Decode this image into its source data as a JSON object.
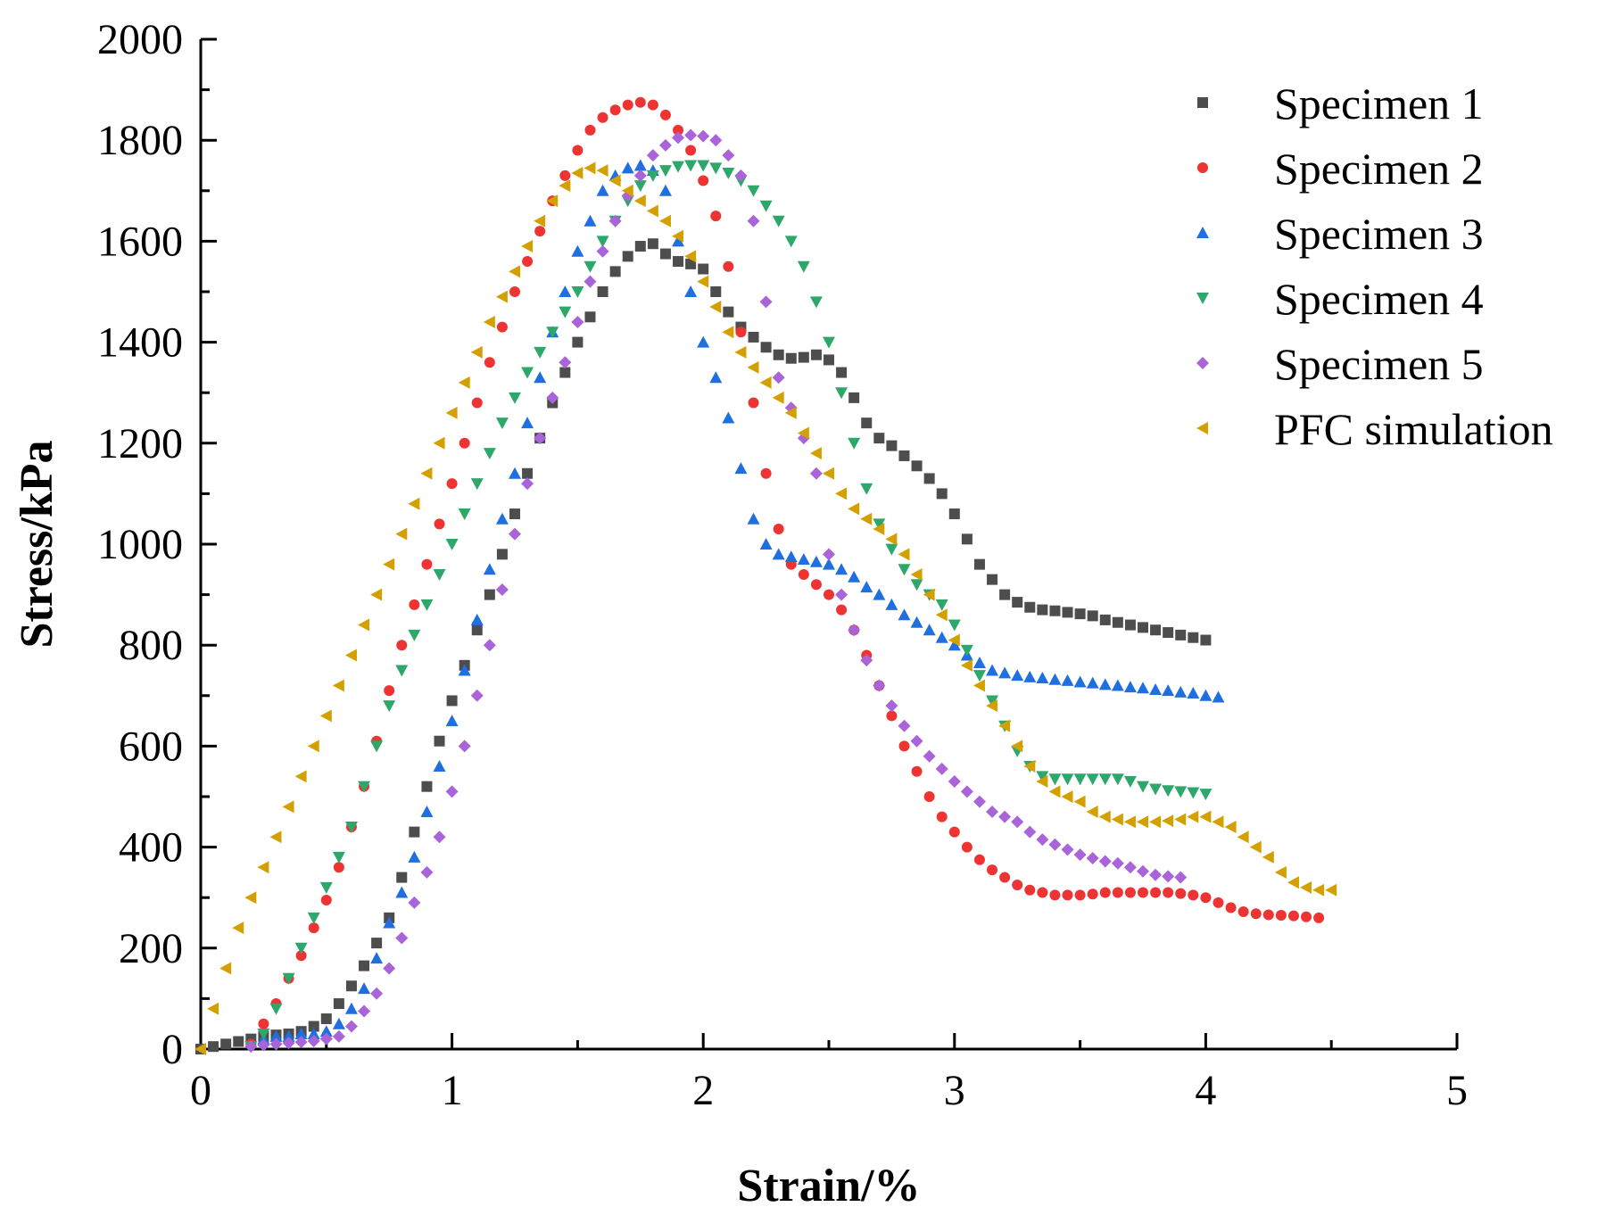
{
  "chart_data": {
    "type": "scatter",
    "title": "",
    "xlabel": "Strain/%",
    "ylabel": "Stress/kPa",
    "xlim": [
      0,
      5
    ],
    "ylim": [
      0,
      2000
    ],
    "xticks": [
      0,
      1,
      2,
      3,
      4,
      5
    ],
    "yticks": [
      0,
      200,
      400,
      600,
      800,
      1000,
      1200,
      1400,
      1600,
      1800,
      2000
    ],
    "xtick_labels": [
      "0",
      "1",
      "2",
      "3",
      "4",
      "5"
    ],
    "ytick_labels": [
      "0",
      "200",
      "400",
      "600",
      "800",
      "1000",
      "1200",
      "1400",
      "1600",
      "1800",
      "2000"
    ],
    "grid": false,
    "legend_position": "top-right",
    "series": [
      {
        "name": "Specimen 1",
        "marker": "square",
        "color": "#4d4d4d",
        "x": [
          0,
          0.05,
          0.1,
          0.15,
          0.2,
          0.25,
          0.3,
          0.35,
          0.4,
          0.45,
          0.5,
          0.55,
          0.6,
          0.65,
          0.7,
          0.75,
          0.8,
          0.85,
          0.9,
          0.95,
          1.0,
          1.05,
          1.1,
          1.15,
          1.2,
          1.25,
          1.3,
          1.35,
          1.4,
          1.45,
          1.5,
          1.55,
          1.6,
          1.65,
          1.7,
          1.75,
          1.8,
          1.85,
          1.9,
          1.95,
          2.0,
          2.05,
          2.1,
          2.15,
          2.2,
          2.25,
          2.3,
          2.35,
          2.4,
          2.45,
          2.5,
          2.55,
          2.6,
          2.65,
          2.7,
          2.75,
          2.8,
          2.85,
          2.9,
          2.95,
          3.0,
          3.05,
          3.1,
          3.15,
          3.2,
          3.25,
          3.3,
          3.35,
          3.4,
          3.45,
          3.5,
          3.55,
          3.6,
          3.65,
          3.7,
          3.75,
          3.8,
          3.85,
          3.9,
          3.95,
          4.0
        ],
        "y": [
          0,
          5,
          10,
          15,
          20,
          25,
          28,
          30,
          35,
          45,
          60,
          90,
          125,
          165,
          210,
          260,
          340,
          430,
          520,
          610,
          690,
          760,
          830,
          900,
          980,
          1060,
          1140,
          1210,
          1280,
          1340,
          1400,
          1450,
          1500,
          1540,
          1570,
          1590,
          1595,
          1575,
          1560,
          1555,
          1545,
          1500,
          1460,
          1430,
          1410,
          1390,
          1375,
          1368,
          1370,
          1375,
          1365,
          1340,
          1290,
          1240,
          1210,
          1195,
          1175,
          1155,
          1130,
          1100,
          1060,
          1010,
          960,
          930,
          900,
          885,
          875,
          870,
          868,
          865,
          862,
          858,
          850,
          845,
          840,
          835,
          830,
          825,
          820,
          815,
          810
        ]
      },
      {
        "name": "Specimen 2",
        "marker": "circle",
        "color": "#ee3333",
        "x": [
          0.2,
          0.25,
          0.3,
          0.35,
          0.4,
          0.45,
          0.5,
          0.55,
          0.6,
          0.65,
          0.7,
          0.75,
          0.8,
          0.85,
          0.9,
          0.95,
          1.0,
          1.05,
          1.1,
          1.15,
          1.2,
          1.25,
          1.3,
          1.35,
          1.4,
          1.45,
          1.5,
          1.55,
          1.6,
          1.65,
          1.7,
          1.75,
          1.8,
          1.85,
          1.9,
          1.95,
          2.0,
          2.05,
          2.1,
          2.15,
          2.2,
          2.25,
          2.3,
          2.35,
          2.4,
          2.45,
          2.5,
          2.55,
          2.6,
          2.65,
          2.7,
          2.75,
          2.8,
          2.85,
          2.9,
          2.95,
          3.0,
          3.05,
          3.1,
          3.15,
          3.2,
          3.25,
          3.3,
          3.35,
          3.4,
          3.45,
          3.5,
          3.55,
          3.6,
          3.65,
          3.7,
          3.75,
          3.8,
          3.85,
          3.9,
          3.95,
          4.0,
          4.05,
          4.1,
          4.15,
          4.2,
          4.25,
          4.3,
          4.35,
          4.4,
          4.45
        ],
        "y": [
          10,
          50,
          90,
          140,
          185,
          240,
          295,
          360,
          440,
          520,
          610,
          710,
          800,
          880,
          960,
          1040,
          1120,
          1200,
          1280,
          1360,
          1430,
          1500,
          1560,
          1620,
          1680,
          1730,
          1780,
          1820,
          1845,
          1860,
          1870,
          1875,
          1870,
          1850,
          1820,
          1780,
          1720,
          1650,
          1550,
          1420,
          1280,
          1140,
          1030,
          960,
          940,
          920,
          900,
          870,
          830,
          780,
          720,
          660,
          600,
          550,
          500,
          460,
          430,
          400,
          375,
          355,
          340,
          325,
          315,
          310,
          305,
          305,
          305,
          307,
          310,
          310,
          310,
          310,
          310,
          310,
          308,
          305,
          300,
          290,
          280,
          272,
          268,
          266,
          265,
          264,
          262,
          260
        ]
      },
      {
        "name": "Specimen 3",
        "marker": "triangle-up",
        "color": "#1f6fe0",
        "x": [
          0.25,
          0.3,
          0.35,
          0.4,
          0.45,
          0.5,
          0.55,
          0.6,
          0.65,
          0.7,
          0.75,
          0.8,
          0.85,
          0.9,
          0.95,
          1.0,
          1.05,
          1.1,
          1.15,
          1.2,
          1.25,
          1.3,
          1.35,
          1.4,
          1.45,
          1.5,
          1.55,
          1.6,
          1.65,
          1.7,
          1.75,
          1.8,
          1.85,
          1.9,
          1.95,
          2.0,
          2.05,
          2.1,
          2.15,
          2.2,
          2.25,
          2.3,
          2.35,
          2.4,
          2.45,
          2.5,
          2.55,
          2.6,
          2.65,
          2.7,
          2.75,
          2.8,
          2.85,
          2.9,
          2.95,
          3.0,
          3.05,
          3.1,
          3.15,
          3.2,
          3.25,
          3.3,
          3.35,
          3.4,
          3.45,
          3.5,
          3.55,
          3.6,
          3.65,
          3.7,
          3.75,
          3.8,
          3.85,
          3.9,
          3.95,
          4.0,
          4.05
        ],
        "y": [
          20,
          25,
          25,
          30,
          30,
          35,
          50,
          80,
          120,
          180,
          250,
          310,
          380,
          470,
          560,
          650,
          750,
          850,
          950,
          1050,
          1140,
          1240,
          1330,
          1420,
          1500,
          1580,
          1640,
          1700,
          1730,
          1745,
          1750,
          1740,
          1700,
          1600,
          1500,
          1400,
          1330,
          1250,
          1150,
          1050,
          1000,
          980,
          975,
          970,
          965,
          960,
          950,
          935,
          915,
          900,
          880,
          860,
          845,
          830,
          815,
          800,
          780,
          765,
          750,
          745,
          740,
          737,
          735,
          732,
          730,
          727,
          725,
          722,
          720,
          717,
          715,
          712,
          710,
          707,
          705,
          700,
          697
        ]
      },
      {
        "name": "Specimen 4",
        "marker": "triangle-down",
        "color": "#2ea86a",
        "x": [
          0.2,
          0.25,
          0.3,
          0.35,
          0.4,
          0.45,
          0.5,
          0.55,
          0.6,
          0.65,
          0.7,
          0.75,
          0.8,
          0.85,
          0.9,
          0.95,
          1.0,
          1.05,
          1.1,
          1.15,
          1.2,
          1.25,
          1.3,
          1.35,
          1.4,
          1.45,
          1.5,
          1.55,
          1.6,
          1.65,
          1.7,
          1.75,
          1.8,
          1.85,
          1.9,
          1.95,
          2.0,
          2.05,
          2.1,
          2.15,
          2.2,
          2.25,
          2.3,
          2.35,
          2.4,
          2.45,
          2.5,
          2.55,
          2.6,
          2.65,
          2.7,
          2.75,
          2.8,
          2.85,
          2.9,
          2.95,
          3.0,
          3.05,
          3.1,
          3.15,
          3.2,
          3.25,
          3.3,
          3.35,
          3.4,
          3.45,
          3.5,
          3.55,
          3.6,
          3.65,
          3.7,
          3.75,
          3.8,
          3.85,
          3.9,
          3.95,
          4.0
        ],
        "y": [
          5,
          30,
          80,
          140,
          200,
          260,
          320,
          380,
          440,
          520,
          600,
          680,
          750,
          820,
          880,
          940,
          1000,
          1060,
          1120,
          1180,
          1240,
          1290,
          1340,
          1380,
          1420,
          1460,
          1500,
          1550,
          1600,
          1640,
          1680,
          1710,
          1730,
          1740,
          1748,
          1750,
          1750,
          1745,
          1735,
          1720,
          1700,
          1670,
          1640,
          1600,
          1550,
          1480,
          1400,
          1300,
          1200,
          1110,
          1040,
          990,
          950,
          920,
          900,
          880,
          840,
          790,
          740,
          690,
          640,
          590,
          560,
          540,
          535,
          535,
          535,
          535,
          535,
          535,
          530,
          520,
          515,
          512,
          510,
          508,
          505
        ]
      },
      {
        "name": "Specimen 5",
        "marker": "diamond",
        "color": "#a864d8",
        "x": [
          0.2,
          0.25,
          0.3,
          0.35,
          0.4,
          0.45,
          0.5,
          0.55,
          0.6,
          0.65,
          0.7,
          0.75,
          0.8,
          0.85,
          0.9,
          0.95,
          1.0,
          1.05,
          1.1,
          1.15,
          1.2,
          1.25,
          1.3,
          1.35,
          1.4,
          1.45,
          1.5,
          1.55,
          1.6,
          1.65,
          1.7,
          1.75,
          1.8,
          1.85,
          1.9,
          1.95,
          2.0,
          2.05,
          2.1,
          2.15,
          2.2,
          2.25,
          2.3,
          2.35,
          2.4,
          2.45,
          2.5,
          2.55,
          2.6,
          2.65,
          2.7,
          2.75,
          2.8,
          2.85,
          2.9,
          2.95,
          3.0,
          3.05,
          3.1,
          3.15,
          3.2,
          3.25,
          3.3,
          3.35,
          3.4,
          3.45,
          3.5,
          3.55,
          3.6,
          3.65,
          3.7,
          3.75,
          3.8,
          3.85,
          3.9
        ],
        "y": [
          5,
          8,
          10,
          12,
          14,
          16,
          20,
          25,
          45,
          75,
          110,
          160,
          220,
          290,
          350,
          420,
          510,
          600,
          700,
          800,
          910,
          1020,
          1120,
          1210,
          1290,
          1360,
          1440,
          1520,
          1580,
          1640,
          1690,
          1730,
          1770,
          1790,
          1805,
          1810,
          1808,
          1800,
          1770,
          1730,
          1640,
          1480,
          1330,
          1270,
          1210,
          1140,
          980,
          900,
          830,
          770,
          720,
          680,
          640,
          610,
          580,
          555,
          530,
          510,
          490,
          470,
          460,
          450,
          430,
          415,
          405,
          395,
          385,
          378,
          372,
          368,
          360,
          352,
          345,
          342,
          340
        ]
      },
      {
        "name": "PFC simulation",
        "marker": "triangle-left",
        "color": "#d4a000",
        "x": [
          0,
          0.05,
          0.1,
          0.15,
          0.2,
          0.25,
          0.3,
          0.35,
          0.4,
          0.45,
          0.5,
          0.55,
          0.6,
          0.65,
          0.7,
          0.75,
          0.8,
          0.85,
          0.9,
          0.95,
          1.0,
          1.05,
          1.1,
          1.15,
          1.2,
          1.25,
          1.3,
          1.35,
          1.4,
          1.45,
          1.5,
          1.55,
          1.6,
          1.65,
          1.7,
          1.75,
          1.8,
          1.85,
          1.9,
          1.95,
          2.0,
          2.05,
          2.1,
          2.15,
          2.2,
          2.25,
          2.3,
          2.35,
          2.4,
          2.45,
          2.5,
          2.55,
          2.6,
          2.65,
          2.7,
          2.75,
          2.8,
          2.85,
          2.9,
          2.95,
          3.0,
          3.05,
          3.1,
          3.15,
          3.2,
          3.25,
          3.3,
          3.35,
          3.4,
          3.45,
          3.5,
          3.55,
          3.6,
          3.65,
          3.7,
          3.75,
          3.8,
          3.85,
          3.9,
          3.95,
          4.0,
          4.05,
          4.1,
          4.15,
          4.2,
          4.25,
          4.3,
          4.35,
          4.4,
          4.45,
          4.5
        ],
        "y": [
          0,
          80,
          160,
          240,
          300,
          360,
          420,
          480,
          540,
          600,
          660,
          720,
          780,
          840,
          900,
          960,
          1020,
          1080,
          1140,
          1200,
          1260,
          1320,
          1380,
          1440,
          1490,
          1540,
          1590,
          1640,
          1680,
          1710,
          1735,
          1745,
          1740,
          1720,
          1700,
          1680,
          1660,
          1640,
          1610,
          1570,
          1520,
          1470,
          1420,
          1380,
          1350,
          1320,
          1290,
          1260,
          1220,
          1180,
          1140,
          1100,
          1070,
          1050,
          1030,
          1010,
          980,
          940,
          900,
          860,
          810,
          760,
          720,
          680,
          640,
          600,
          560,
          530,
          510,
          500,
          490,
          470,
          460,
          455,
          450,
          450,
          450,
          452,
          455,
          460,
          460,
          450,
          440,
          420,
          400,
          380,
          350,
          330,
          320,
          315,
          315
        ]
      }
    ]
  }
}
